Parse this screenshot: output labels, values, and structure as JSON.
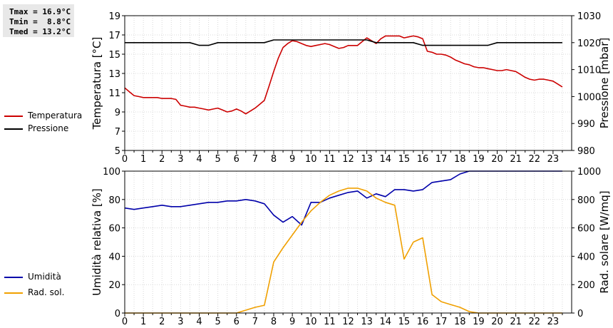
{
  "stats": {
    "tmax": "Tmax = 16.9°C",
    "tmin": "Tmin =  8.8°C",
    "tmed": "Tmed = 13.2°C"
  },
  "colors": {
    "temperature": "#cc0000",
    "pressure": "#000000",
    "humidity": "#0000aa",
    "radiation": "#f0a000",
    "grid": "#d8d8d8"
  },
  "chart_data": [
    {
      "type": "line",
      "xlabel": "",
      "ylabel": "Temperatura [°C]",
      "y2label": "Pressione [mbar]",
      "xlim": [
        0,
        24
      ],
      "ylim": [
        5,
        19
      ],
      "y2lim": [
        980,
        1030
      ],
      "xticks": [
        "0",
        "1",
        "2",
        "3",
        "4",
        "5",
        "6",
        "7",
        "8",
        "9",
        "10",
        "11",
        "12",
        "13",
        "14",
        "15",
        "16",
        "17",
        "18",
        "19",
        "20",
        "21",
        "22",
        "23"
      ],
      "yticks": [
        "5",
        "7",
        "9",
        "11",
        "13",
        "15",
        "17",
        "19"
      ],
      "y2ticks": [
        "980",
        "990",
        "1000",
        "1010",
        "1020",
        "1030"
      ],
      "grid": true,
      "legend": "left",
      "series": [
        {
          "name": "Temperatura",
          "axis": "left",
          "x": [
            0,
            0.25,
            0.5,
            0.75,
            1,
            1.25,
            1.5,
            1.75,
            2,
            2.25,
            2.5,
            2.75,
            3,
            3.25,
            3.5,
            3.75,
            4,
            4.25,
            4.5,
            4.75,
            5,
            5.25,
            5.5,
            5.75,
            6,
            6.25,
            6.5,
            6.75,
            7,
            7.25,
            7.5,
            7.75,
            8,
            8.25,
            8.5,
            8.75,
            9,
            9.25,
            9.5,
            9.75,
            10,
            10.25,
            10.5,
            10.75,
            11,
            11.25,
            11.5,
            11.75,
            12,
            12.25,
            12.5,
            12.75,
            13,
            13.25,
            13.5,
            13.75,
            14,
            14.25,
            14.5,
            14.75,
            15,
            15.25,
            15.5,
            15.75,
            16,
            16.25,
            16.5,
            16.75,
            17,
            17.25,
            17.5,
            17.75,
            18,
            18.25,
            18.5,
            18.75,
            19,
            19.25,
            19.5,
            19.75,
            20,
            20.25,
            20.5,
            20.75,
            21,
            21.25,
            21.5,
            21.75,
            22,
            22.25,
            22.5,
            22.75,
            23,
            23.25,
            23.5
          ],
          "values": [
            11.5,
            11.1,
            10.7,
            10.6,
            10.5,
            10.5,
            10.5,
            10.5,
            10.4,
            10.4,
            10.4,
            10.3,
            9.7,
            9.6,
            9.5,
            9.5,
            9.4,
            9.3,
            9.2,
            9.3,
            9.4,
            9.2,
            9.0,
            9.1,
            9.3,
            9.1,
            8.8,
            9.1,
            9.4,
            9.8,
            10.2,
            11.7,
            13.2,
            14.6,
            15.7,
            16.1,
            16.4,
            16.3,
            16.1,
            15.9,
            15.8,
            15.9,
            16.0,
            16.1,
            16.0,
            15.8,
            15.6,
            15.7,
            15.9,
            15.9,
            15.9,
            16.3,
            16.7,
            16.4,
            16.1,
            16.6,
            16.9,
            16.9,
            16.9,
            16.9,
            16.7,
            16.8,
            16.9,
            16.8,
            16.6,
            15.3,
            15.2,
            15.0,
            15.0,
            14.9,
            14.7,
            14.4,
            14.2,
            14.0,
            13.9,
            13.7,
            13.6,
            13.6,
            13.5,
            13.4,
            13.3,
            13.3,
            13.4,
            13.3,
            13.2,
            12.9,
            12.6,
            12.4,
            12.3,
            12.4,
            12.4,
            12.3,
            12.2,
            11.9,
            11.6
          ]
        },
        {
          "name": "Pressione",
          "axis": "right",
          "x": [
            0,
            0.5,
            1,
            1.5,
            2,
            2.5,
            3,
            3.5,
            4,
            4.5,
            5,
            5.5,
            6,
            6.5,
            7,
            7.5,
            8,
            8.5,
            9,
            9.5,
            10,
            10.5,
            11,
            11.5,
            12,
            12.5,
            13,
            13.5,
            14,
            14.5,
            15,
            15.5,
            16,
            16.5,
            17,
            17.5,
            18,
            18.5,
            19,
            19.5,
            20,
            20.5,
            21,
            21.5,
            22,
            22.5,
            23,
            23.5
          ],
          "values": [
            1020,
            1020,
            1020,
            1020,
            1020,
            1020,
            1020,
            1020,
            1019,
            1019,
            1020,
            1020,
            1020,
            1020,
            1020,
            1020,
            1021,
            1021,
            1021,
            1021,
            1021,
            1021,
            1021,
            1021,
            1021,
            1021,
            1021,
            1020,
            1020,
            1020,
            1020,
            1020,
            1019,
            1019,
            1019,
            1019,
            1019,
            1019,
            1019,
            1019,
            1020,
            1020,
            1020,
            1020,
            1020,
            1020,
            1020,
            1020
          ]
        }
      ]
    },
    {
      "type": "line",
      "xlabel": "",
      "ylabel": "Umidità relativa [%]",
      "y2label": "Rad. solare [W/mq]",
      "xlim": [
        0,
        24
      ],
      "ylim": [
        0,
        100
      ],
      "y2lim": [
        0,
        1000
      ],
      "xticks": [
        "0",
        "1",
        "2",
        "3",
        "4",
        "5",
        "6",
        "7",
        "8",
        "9",
        "10",
        "11",
        "12",
        "13",
        "14",
        "15",
        "16",
        "17",
        "18",
        "19",
        "20",
        "21",
        "22",
        "23"
      ],
      "yticks": [
        "0",
        "20",
        "40",
        "60",
        "80",
        "100"
      ],
      "y2ticks": [
        "0",
        "200",
        "400",
        "600",
        "800",
        "1000"
      ],
      "grid": true,
      "legend": "left",
      "series": [
        {
          "name": "Umidità",
          "axis": "left",
          "x": [
            0,
            0.5,
            1,
            1.5,
            2,
            2.5,
            3,
            3.5,
            4,
            4.5,
            5,
            5.5,
            6,
            6.5,
            7,
            7.5,
            8,
            8.5,
            9,
            9.5,
            10,
            10.5,
            11,
            11.5,
            12,
            12.5,
            13,
            13.5,
            14,
            14.5,
            15,
            15.5,
            16,
            16.5,
            17,
            17.5,
            18,
            18.5,
            19,
            19.5,
            20,
            20.5,
            21,
            21.5,
            22,
            22.5,
            23,
            23.5
          ],
          "values": [
            74,
            73,
            74,
            75,
            76,
            75,
            75,
            76,
            77,
            78,
            78,
            79,
            79,
            80,
            79,
            77,
            69,
            64,
            68,
            62,
            78,
            78,
            81,
            83,
            85,
            86,
            81,
            84,
            82,
            87,
            87,
            86,
            87,
            92,
            93,
            94,
            98,
            100,
            100,
            100,
            100,
            100,
            100,
            100,
            100,
            100,
            100,
            100
          ]
        },
        {
          "name": "Rad. sol.",
          "axis": "right",
          "x": [
            0,
            0.5,
            1,
            1.5,
            2,
            2.5,
            3,
            3.5,
            4,
            4.5,
            5,
            5.5,
            6,
            6.5,
            7,
            7.5,
            8,
            8.5,
            9,
            9.5,
            10,
            10.5,
            11,
            11.5,
            12,
            12.5,
            13,
            13.5,
            14,
            14.5,
            15,
            15.5,
            16,
            16.5,
            17,
            17.5,
            18,
            18.5,
            19,
            19.5,
            20,
            20.5,
            21,
            21.5,
            22,
            22.5,
            23,
            23.5
          ],
          "values": [
            0,
            0,
            0,
            0,
            0,
            0,
            0,
            0,
            0,
            0,
            0,
            0,
            0,
            20,
            40,
            55,
            360,
            460,
            550,
            640,
            720,
            780,
            830,
            860,
            880,
            880,
            860,
            810,
            780,
            760,
            380,
            500,
            530,
            130,
            80,
            60,
            40,
            10,
            0,
            0,
            0,
            0,
            0,
            0,
            0,
            0,
            0,
            0
          ]
        }
      ]
    }
  ]
}
